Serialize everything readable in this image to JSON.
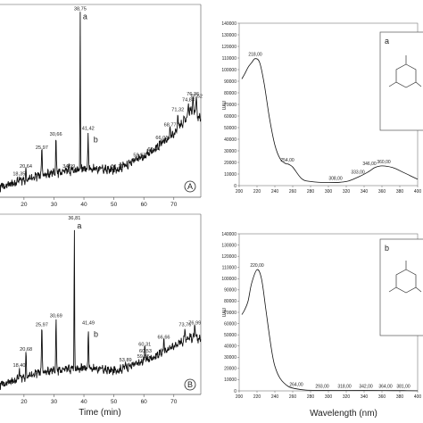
{
  "chart_data": [
    {
      "id": "chrom_A",
      "type": "line",
      "panel_tag": "A",
      "xlabel": "",
      "ylabel": "",
      "xlim": [
        12,
        79
      ],
      "ylim": [
        0,
        100
      ],
      "x_ticks": [
        "20",
        "30",
        "40",
        "50",
        "60",
        "70"
      ],
      "peaks": [
        {
          "label": "18,35",
          "x": 18.35,
          "y": 10
        },
        {
          "label": "20,64",
          "x": 20.64,
          "y": 14
        },
        {
          "label": "25,97",
          "x": 25.97,
          "y": 24
        },
        {
          "label": "30,66",
          "x": 30.66,
          "y": 31
        },
        {
          "label": "34,99",
          "x": 34.99,
          "y": 14
        },
        {
          "label": "38,75",
          "x": 38.75,
          "y": 97,
          "tag": "a"
        },
        {
          "label": "41,42",
          "x": 41.42,
          "y": 34,
          "tag": "b"
        },
        {
          "label": "51,11",
          "x": 51.11,
          "y": 14
        },
        {
          "label": "58,57",
          "x": 58.57,
          "y": 20
        },
        {
          "label": "63,34",
          "x": 63.34,
          "y": 23
        },
        {
          "label": "66,01",
          "x": 66.01,
          "y": 29
        },
        {
          "label": "68,77",
          "x": 68.77,
          "y": 36
        },
        {
          "label": "71,32",
          "x": 71.32,
          "y": 44
        },
        {
          "label": "74,83",
          "x": 74.83,
          "y": 49
        },
        {
          "label": "76,36",
          "x": 76.36,
          "y": 52
        },
        {
          "label": "77,52",
          "x": 77.52,
          "y": 51
        }
      ],
      "baseline": [
        [
          12,
          4
        ],
        [
          25,
          10
        ],
        [
          40,
          14
        ],
        [
          50,
          13
        ],
        [
          60,
          20
        ],
        [
          70,
          32
        ],
        [
          76,
          45
        ],
        [
          79,
          40
        ]
      ]
    },
    {
      "id": "chrom_B",
      "type": "line",
      "panel_tag": "B",
      "xlabel": "Time (min)",
      "ylabel": "",
      "xlim": [
        12,
        79
      ],
      "ylim": [
        0,
        100
      ],
      "x_ticks": [
        "20",
        "30",
        "40",
        "50",
        "60",
        "70"
      ],
      "peaks": [
        {
          "label": "18,40",
          "x": 18.4,
          "y": 14
        },
        {
          "label": "20,68",
          "x": 20.68,
          "y": 23
        },
        {
          "label": "25,97",
          "x": 25.97,
          "y": 37
        },
        {
          "label": "30,69",
          "x": 30.69,
          "y": 42
        },
        {
          "label": "36,81",
          "x": 36.81,
          "y": 97,
          "tag": "a"
        },
        {
          "label": "41,49",
          "x": 41.49,
          "y": 38,
          "tag": "b"
        },
        {
          "label": "53,89",
          "x": 53.89,
          "y": 17
        },
        {
          "label": "59,85",
          "x": 59.85,
          "y": 19
        },
        {
          "label": "60,53",
          "x": 60.53,
          "y": 22
        },
        {
          "label": "60,31",
          "x": 60.31,
          "y": 26
        },
        {
          "label": "66,66",
          "x": 66.66,
          "y": 30
        },
        {
          "label": "73,76",
          "x": 73.76,
          "y": 37
        },
        {
          "label": "76,99",
          "x": 76.99,
          "y": 38
        }
      ],
      "baseline": [
        [
          12,
          4
        ],
        [
          25,
          11
        ],
        [
          40,
          14
        ],
        [
          50,
          12
        ],
        [
          60,
          17
        ],
        [
          70,
          26
        ],
        [
          75,
          31
        ],
        [
          79,
          30
        ]
      ]
    },
    {
      "id": "uv_a",
      "type": "line",
      "ylabel": "UAU",
      "xlabel": "",
      "xlim": [
        200,
        400
      ],
      "ylim": [
        0,
        140000
      ],
      "y_ticks": [
        "0",
        "10000",
        "20000",
        "30000",
        "40000",
        "50000",
        "60000",
        "70000",
        "80000",
        "90000",
        "100000",
        "110000",
        "120000",
        "130000",
        "140000"
      ],
      "x_ticks": [
        "200",
        "220",
        "240",
        "260",
        "280",
        "300",
        "320",
        "340",
        "360",
        "380",
        "400"
      ],
      "series": [
        {
          "x": [
            203,
            206,
            210,
            214,
            218,
            223,
            228,
            234,
            240,
            246,
            252,
            255,
            260,
            270,
            280,
            300,
            320,
            335,
            345,
            352,
            360,
            372,
            385,
            400
          ],
          "y": [
            92000,
            96000,
            102000,
            106000,
            109500,
            106000,
            88000,
            58000,
            35000,
            23000,
            19000,
            18500,
            16000,
            6000,
            3500,
            2600,
            3500,
            8000,
            12000,
            15500,
            17000,
            15500,
            11000,
            5500
          ]
        }
      ],
      "annotations": [
        {
          "label": "218,00",
          "x": 218,
          "y": 109500
        },
        {
          "label": "254,00",
          "x": 254,
          "y": 18500
        },
        {
          "label": "308,00",
          "x": 308,
          "y": 2600
        },
        {
          "label": "333,00",
          "x": 333,
          "y": 8000
        },
        {
          "label": "346,00",
          "x": 346,
          "y": 15500
        },
        {
          "label": "360,00",
          "x": 362,
          "y": 17000
        }
      ],
      "inset_tag": "a"
    },
    {
      "id": "uv_b",
      "type": "line",
      "ylabel": "UAU",
      "xlabel": "Wavelength (nm)",
      "xlim": [
        200,
        400
      ],
      "ylim": [
        0,
        140000
      ],
      "y_ticks": [
        "0",
        "10000",
        "20000",
        "30000",
        "40000",
        "50000",
        "60000",
        "70000",
        "80000",
        "90000",
        "100000",
        "110000",
        "120000",
        "130000",
        "140000"
      ],
      "x_ticks": [
        "200",
        "220",
        "240",
        "260",
        "280",
        "300",
        "320",
        "340",
        "360",
        "380",
        "400"
      ],
      "series": [
        {
          "x": [
            203,
            206,
            210,
            214,
            220,
            225,
            230,
            236,
            240,
            246,
            255,
            264,
            275,
            293,
            318,
            342,
            364,
            384,
            400
          ],
          "y": [
            68000,
            72000,
            80000,
            96000,
            108000,
            100000,
            72000,
            38000,
            22000,
            11000,
            4000,
            1800,
            700,
            500,
            400,
            500,
            300,
            200,
            100
          ]
        }
      ],
      "annotations": [
        {
          "label": "220,00",
          "x": 220,
          "y": 108000
        },
        {
          "label": "264,00",
          "x": 264,
          "y": 1800
        },
        {
          "label": "293,00",
          "x": 293,
          "y": 500
        },
        {
          "label": "318,00",
          "x": 318,
          "y": 400
        },
        {
          "label": "342,00",
          "x": 342,
          "y": 500
        },
        {
          "label": "364,00",
          "x": 364,
          "y": 300
        },
        {
          "label": "381,00",
          "x": 384,
          "y": 200
        }
      ],
      "inset_tag": "b"
    }
  ]
}
